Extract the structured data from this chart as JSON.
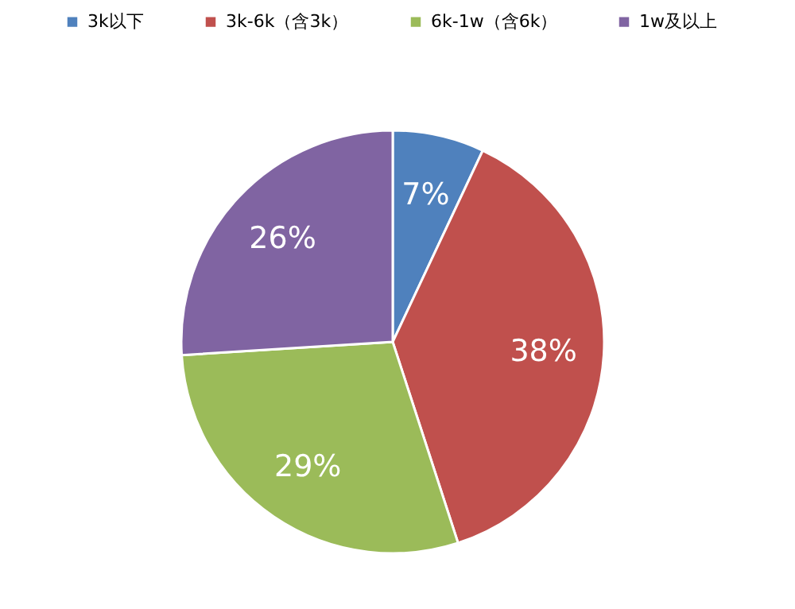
{
  "chart_data": {
    "type": "pie",
    "categories": [
      "3k以下",
      "3k-6k（含3k）",
      "6k-1w（含6k）",
      "1w及以上"
    ],
    "values": [
      7,
      38,
      29,
      26
    ],
    "colors": [
      "#4f81bd",
      "#c0504d",
      "#9bbb59",
      "#8064a2"
    ],
    "value_labels": [
      "7%",
      "38%",
      "29%",
      "26%"
    ],
    "legend": "top"
  }
}
